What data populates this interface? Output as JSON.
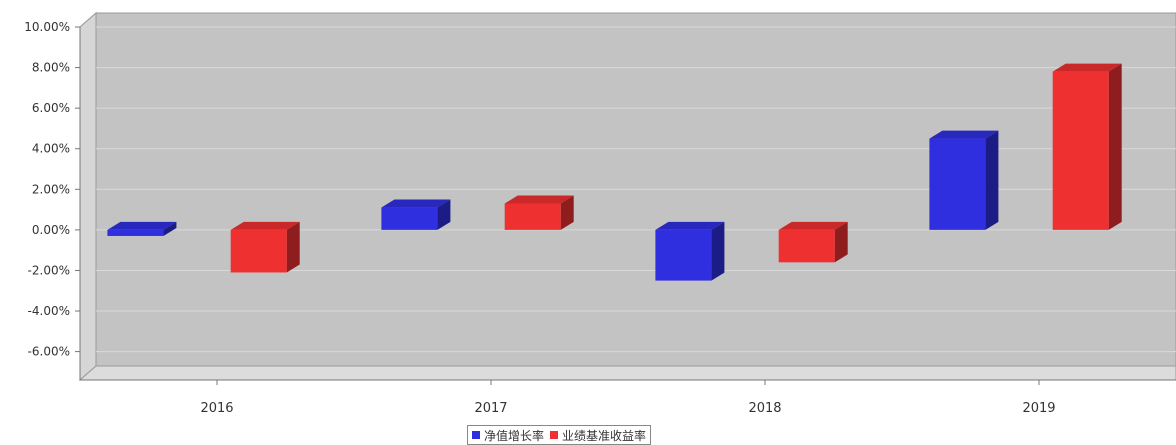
{
  "chart_data": {
    "type": "bar",
    "categories": [
      "2016",
      "2017",
      "2018",
      "2019"
    ],
    "series": [
      {
        "name": "净值增长率",
        "values": [
          -0.3,
          1.1,
          -2.5,
          4.5
        ],
        "color": "#2f2fe0"
      },
      {
        "name": "业绩基准收益率",
        "values": [
          -2.1,
          1.3,
          -1.6,
          7.8
        ],
        "color": "#ee3030"
      }
    ],
    "yticks": [
      "10.00%",
      "8.00%",
      "6.00%",
      "4.00%",
      "2.00%",
      "0.00%",
      "-2.00%",
      "-4.00%",
      "-6.00%"
    ],
    "ylim": [
      -7.4,
      10
    ],
    "grid": true,
    "legend_position": "bottom-center"
  }
}
